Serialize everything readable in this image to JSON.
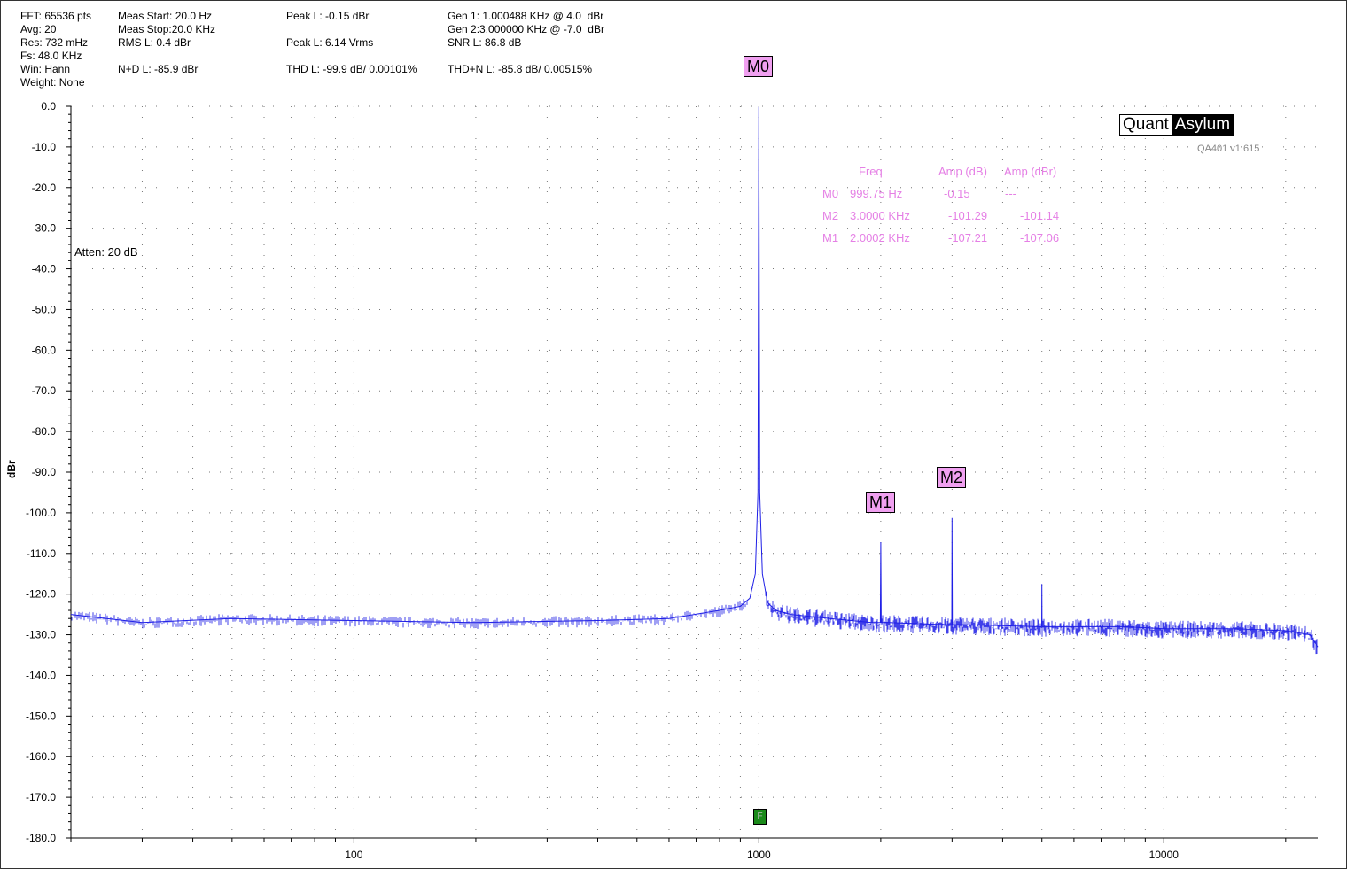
{
  "stats": {
    "fft": "FFT: 65536 pts",
    "avg": "Avg: 20",
    "res": "Res: 732 mHz",
    "fs": "Fs: 48.0 KHz",
    "win": "Win: Hann",
    "weight": "Weight: None",
    "meas_start": "Meas Start: 20.0 Hz",
    "meas_stop": "Meas Stop:20.0 KHz",
    "rms": "RMS L: 0.4 dBr",
    "nd": "N+D L: -85.9 dBr",
    "peak_dbr": "Peak L: -0.15 dBr",
    "peak_vrms": "Peak L: 6.14 Vrms",
    "thd": "THD L: -99.9 dB/ 0.00101%",
    "gen1": "Gen 1: 1.000488 KHz @ 4.0  dBr",
    "gen2": "Gen 2:3.000000 KHz @ -7.0  dBr",
    "snr": "SNR L: 86.8 dB",
    "thdn": "THD+N L: -85.8 dB/ 0.00515%"
  },
  "logo": {
    "part1": "Quant",
    "part2": "Asylum",
    "version": "QA401 v1.615"
  },
  "atten": "Atten: 20 dB",
  "marker_table": {
    "headers": [
      "Freq",
      "Amp (dB)",
      "Amp (dBr)"
    ],
    "rows": [
      {
        "name": "M0",
        "freq": "999.75 Hz",
        "amp_db": "-0.15",
        "amp_dbr": "---"
      },
      {
        "name": "M2",
        "freq": "3.0000 KHz",
        "amp_db": "-101.29",
        "amp_dbr": "-101.14"
      },
      {
        "name": "M1",
        "freq": "2.0002 KHz",
        "amp_db": "-107.21",
        "amp_dbr": "-107.06"
      }
    ]
  },
  "f_badge": "F",
  "colors": {
    "trace": "#1f1fe6",
    "marker_bg": "#f0a0f0",
    "marker_text": "#e580e5",
    "badge": "#1a8a1a"
  },
  "chart_data": {
    "type": "line",
    "ylabel": "dBr",
    "xlabel": "",
    "x_scale": "log",
    "xlim": [
      20,
      24000
    ],
    "ylim": [
      -180,
      0
    ],
    "x_ticks": [
      100,
      1000,
      10000
    ],
    "x_tick_labels": [
      "100",
      "1000",
      "10000"
    ],
    "y_ticks": [
      0,
      -10,
      -20,
      -30,
      -40,
      -50,
      -60,
      -70,
      -80,
      -90,
      -100,
      -110,
      -120,
      -130,
      -140,
      -150,
      -160,
      -170,
      -180
    ],
    "y_tick_labels": [
      "0.0",
      "-10.0",
      "-20.0",
      "-30.0",
      "-40.0",
      "-50.0",
      "-60.0",
      "-70.0",
      "-80.0",
      "-90.0",
      "-100.0",
      "-110.0",
      "-120.0",
      "-130.0",
      "-140.0",
      "-150.0",
      "-160.0",
      "-170.0",
      "-180.0"
    ],
    "grid": true,
    "series": [
      {
        "color": "#1f1fe6",
        "x": [
          20,
          30,
          50,
          100,
          200,
          400,
          600,
          800,
          900,
          950,
          980,
          995,
          1000,
          1005,
          1020,
          1050,
          1100,
          1200,
          1500,
          1900,
          1995,
          2000,
          2005,
          2100,
          2900,
          2995,
          3000,
          3005,
          3200,
          4900,
          4995,
          5000,
          5005,
          6000,
          8000,
          10000,
          15000,
          20000,
          23000,
          24000
        ],
        "y": [
          -125,
          -127,
          -126,
          -126.5,
          -127,
          -126.5,
          -126,
          -124,
          -123,
          -121,
          -115,
          -95,
          -0.15,
          -95,
          -115,
          -122,
          -124,
          -125,
          -126,
          -127,
          -127,
          -107.21,
          -127,
          -127,
          -127.5,
          -127.5,
          -101.29,
          -127.5,
          -127.5,
          -128,
          -128,
          -117.5,
          -128,
          -128,
          -128,
          -128.5,
          -128.5,
          -129,
          -130,
          -133
        ]
      }
    ],
    "markers": [
      {
        "name": "M0",
        "x": 999.75,
        "y": -0.15
      },
      {
        "name": "M1",
        "x": 2000.2,
        "y": -107.21
      },
      {
        "name": "M2",
        "x": 3000,
        "y": -101.29
      }
    ]
  }
}
